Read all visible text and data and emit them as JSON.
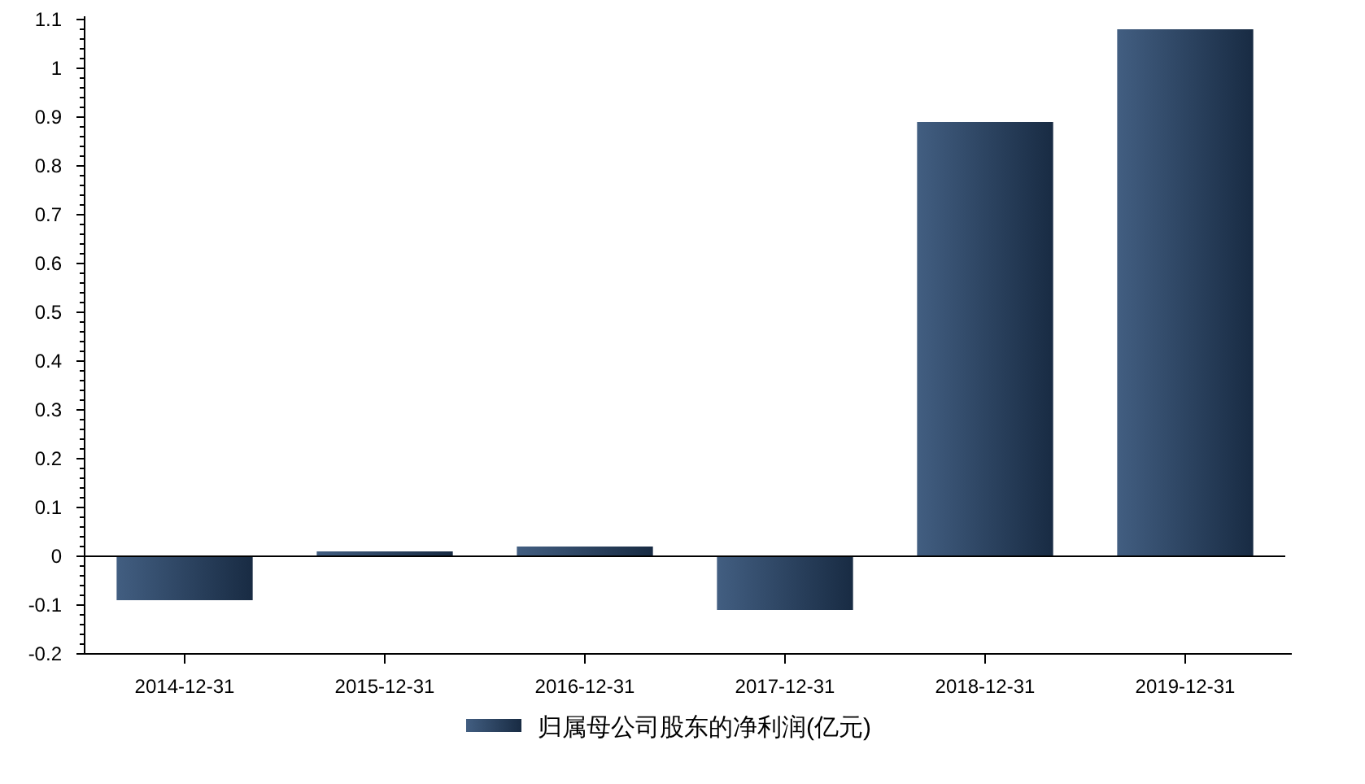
{
  "chart_data": {
    "type": "bar",
    "categories": [
      "2014-12-31",
      "2015-12-31",
      "2016-12-31",
      "2017-12-31",
      "2018-12-31",
      "2019-12-31"
    ],
    "series": [
      {
        "name": "归属母公司股东的净利润(亿元)",
        "color": "#284870",
        "values": [
          -0.09,
          0.01,
          0.02,
          -0.11,
          0.89,
          1.08
        ]
      }
    ],
    "ylim": [
      -0.2,
      1.1
    ],
    "yticks": [
      -0.2,
      -0.1,
      0,
      0.1,
      0.2,
      0.3,
      0.4,
      0.5,
      0.6,
      0.7,
      0.8,
      0.9,
      1,
      1.1
    ],
    "ref_lines": [
      {
        "axis": "y",
        "value": 0,
        "color": "#000000"
      }
    ],
    "legend": "bottom"
  }
}
